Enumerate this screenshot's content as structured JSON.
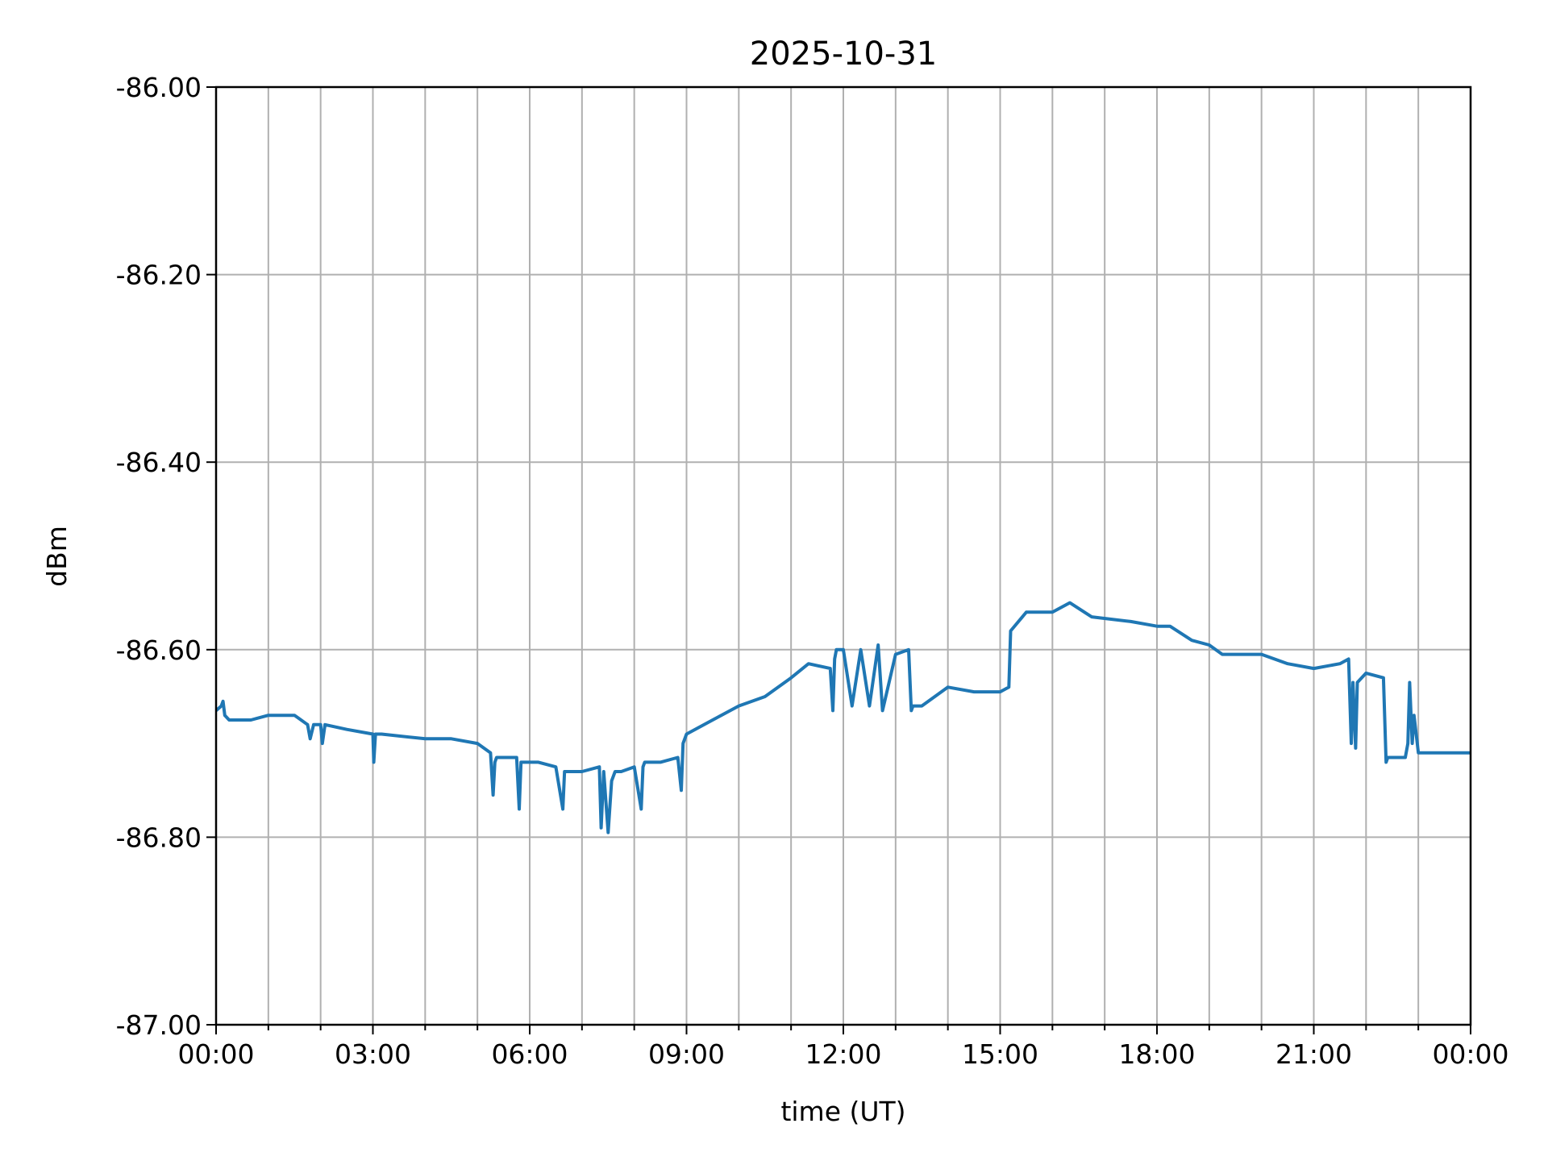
{
  "chart_data": {
    "type": "line",
    "title": "2025-10-31",
    "xlabel": "time (UT)",
    "ylabel": "dBm",
    "xlim": [
      "00:00",
      "24:00"
    ],
    "ylim": [
      -87.0,
      -86.0
    ],
    "grid": true,
    "xticks": [
      "00:00",
      "03:00",
      "06:00",
      "09:00",
      "12:00",
      "15:00",
      "18:00",
      "21:00",
      "00:00"
    ],
    "yticks": [
      "-86.00",
      "-86.20",
      "-86.40",
      "-86.60",
      "-86.80",
      "-87.00"
    ],
    "line_color": "#1f77b4",
    "series": [
      {
        "x": [
          "00:00",
          "00:06",
          "00:08",
          "00:10",
          "00:15",
          "00:40",
          "01:00",
          "01:30",
          "01:45",
          "01:48",
          "01:52",
          "02:00",
          "02:02",
          "02:05",
          "02:30",
          "03:00",
          "03:01",
          "03:03",
          "03:10",
          "04:00",
          "04:30",
          "05:00",
          "05:15",
          "05:18",
          "05:20",
          "05:22",
          "05:30",
          "05:45",
          "05:48",
          "05:50",
          "05:52",
          "06:10",
          "06:30",
          "06:38",
          "06:40",
          "06:42",
          "07:00",
          "07:20",
          "07:22",
          "07:25",
          "07:30",
          "07:34",
          "07:38",
          "07:45",
          "08:00",
          "08:08",
          "08:10",
          "08:12",
          "08:30",
          "08:50",
          "08:54",
          "08:56",
          "09:00",
          "09:30",
          "10:00",
          "10:30",
          "11:00",
          "11:20",
          "11:45",
          "11:48",
          "11:50",
          "11:52",
          "12:00",
          "12:10",
          "12:20",
          "12:30",
          "12:40",
          "12:45",
          "13:00",
          "13:15",
          "13:18",
          "13:20",
          "13:30",
          "14:00",
          "14:30",
          "15:00",
          "15:10",
          "15:12",
          "15:30",
          "16:00",
          "16:20",
          "16:45",
          "17:30",
          "18:00",
          "18:15",
          "18:40",
          "19:00",
          "19:15",
          "20:00",
          "20:30",
          "21:00",
          "21:30",
          "21:40",
          "21:43",
          "21:45",
          "21:48",
          "21:50",
          "22:00",
          "22:20",
          "22:23",
          "22:25",
          "22:45",
          "22:48",
          "22:50",
          "22:53",
          "22:55",
          "23:00",
          "23:30",
          "24:00"
        ],
        "y": [
          -86.665,
          -86.66,
          -86.655,
          -86.67,
          -86.675,
          -86.675,
          -86.67,
          -86.67,
          -86.68,
          -86.695,
          -86.68,
          -86.68,
          -86.7,
          -86.68,
          -86.685,
          -86.69,
          -86.72,
          -86.69,
          -86.69,
          -86.695,
          -86.695,
          -86.7,
          -86.71,
          -86.755,
          -86.72,
          -86.715,
          -86.715,
          -86.715,
          -86.77,
          -86.72,
          -86.72,
          -86.72,
          -86.725,
          -86.77,
          -86.73,
          -86.73,
          -86.73,
          -86.725,
          -86.79,
          -86.73,
          -86.795,
          -86.74,
          -86.73,
          -86.73,
          -86.725,
          -86.77,
          -86.725,
          -86.72,
          -86.72,
          -86.715,
          -86.75,
          -86.7,
          -86.69,
          -86.675,
          -86.66,
          -86.65,
          -86.63,
          -86.615,
          -86.62,
          -86.665,
          -86.61,
          -86.6,
          -86.6,
          -86.66,
          -86.6,
          -86.66,
          -86.595,
          -86.665,
          -86.605,
          -86.6,
          -86.665,
          -86.66,
          -86.66,
          -86.64,
          -86.645,
          -86.645,
          -86.64,
          -86.58,
          -86.56,
          -86.56,
          -86.55,
          -86.565,
          -86.57,
          -86.575,
          -86.575,
          -86.59,
          -86.595,
          -86.605,
          -86.605,
          -86.615,
          -86.62,
          -86.615,
          -86.61,
          -86.7,
          -86.635,
          -86.705,
          -86.635,
          -86.625,
          -86.63,
          -86.72,
          -86.715,
          -86.715,
          -86.7,
          -86.635,
          -86.7,
          -86.67,
          -86.71,
          -86.71,
          -86.71
        ]
      }
    ]
  }
}
